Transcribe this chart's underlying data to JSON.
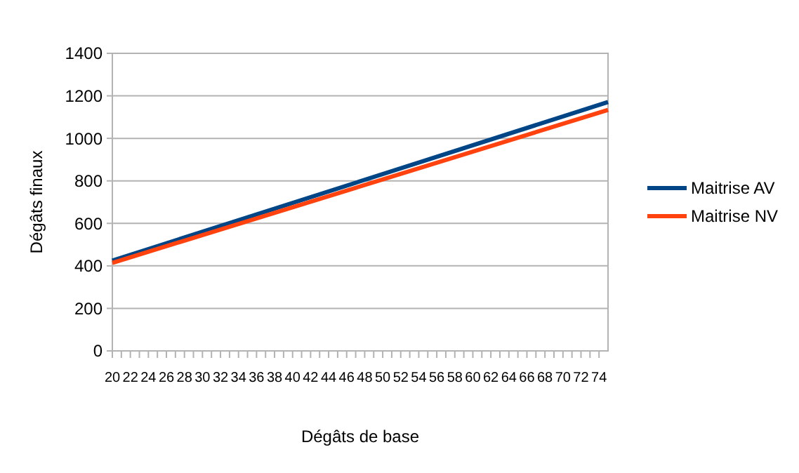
{
  "chart_data": {
    "type": "line",
    "xlabel": "Dégâts de base",
    "ylabel": "Dégâts finaux",
    "x": [
      20,
      75
    ],
    "series": [
      {
        "name": "Maitrise AV",
        "color": "#004586",
        "values": [
          425,
          1171
        ]
      },
      {
        "name": "Maitrise NV",
        "color": "#ff420e",
        "values": [
          414,
          1134
        ]
      }
    ],
    "xlim": [
      20,
      75
    ],
    "xticks": [
      20,
      {
        "value": 21,
        "label": null
      },
      22,
      {
        "value": 23,
        "label": null
      },
      24,
      {
        "value": 25,
        "label": null
      },
      26,
      {
        "value": 27,
        "label": null
      },
      28,
      {
        "value": 29,
        "label": null
      },
      30,
      {
        "value": 31,
        "label": null
      },
      32,
      {
        "value": 33,
        "label": null
      },
      34,
      {
        "value": 35,
        "label": null
      },
      36,
      {
        "value": 37,
        "label": null
      },
      38,
      {
        "value": 39,
        "label": null
      },
      40,
      {
        "value": 41,
        "label": null
      },
      42,
      {
        "value": 43,
        "label": null
      },
      44,
      {
        "value": 45,
        "label": null
      },
      46,
      {
        "value": 47,
        "label": null
      },
      48,
      {
        "value": 49,
        "label": null
      },
      50,
      {
        "value": 51,
        "label": null
      },
      52,
      {
        "value": 53,
        "label": null
      },
      54,
      {
        "value": 55,
        "label": null
      },
      56,
      {
        "value": 57,
        "label": null
      },
      58,
      {
        "value": 59,
        "label": null
      },
      60,
      {
        "value": 61,
        "label": null
      },
      62,
      {
        "value": 63,
        "label": null
      },
      64,
      {
        "value": 65,
        "label": null
      },
      66,
      {
        "value": 67,
        "label": null
      },
      68,
      {
        "value": 69,
        "label": null
      },
      70,
      {
        "value": 71,
        "label": null
      },
      72,
      {
        "value": 73,
        "label": null
      },
      74
    ],
    "ylim": [
      0,
      1400
    ],
    "yticks": [
      0,
      200,
      400,
      600,
      800,
      1000,
      1200,
      1400
    ],
    "grid": "y",
    "legend": "right",
    "line_style": "solid",
    "marker": "none"
  }
}
